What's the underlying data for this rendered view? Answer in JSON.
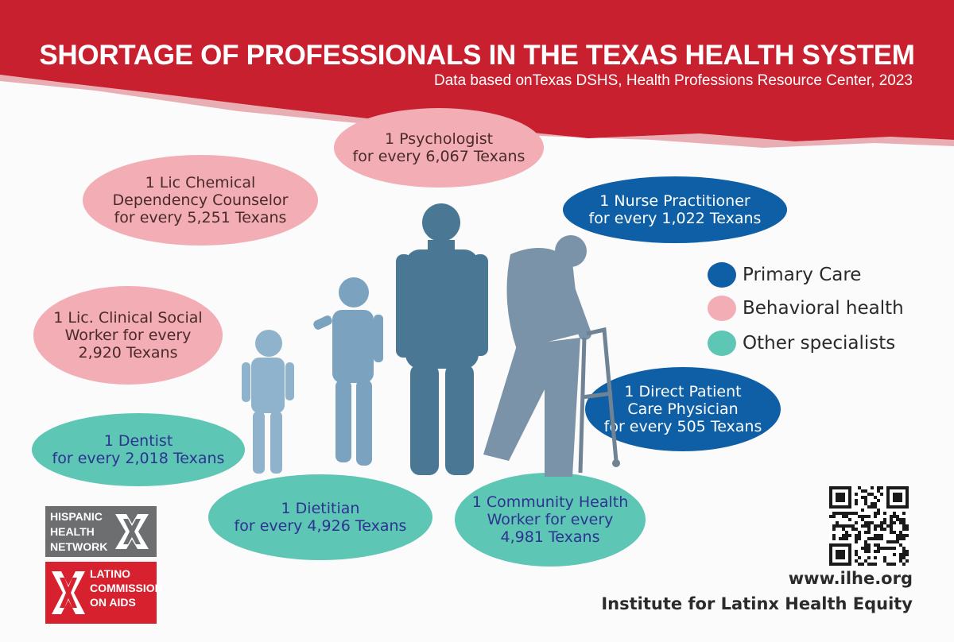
{
  "header": {
    "title": "SHORTAGE OF PROFESSIONALS IN THE TEXAS HEALTH SYSTEM",
    "subtitle": "Data based onTexas DSHS, Health Professions Resource Center, 2023"
  },
  "colors": {
    "banner": "#c8202f",
    "primary_care": "#0f5fa6",
    "behavioral_health": "#f2adb5",
    "other_specialists": "#5dc6b4"
  },
  "bubbles": {
    "psychologist": "1 Psychologist\nfor every 6,067 Texans",
    "chemical_dependency": "1 Lic Chemical\nDependency Counselor\nfor every 5,251 Texans",
    "nurse_practitioner": "1 Nurse Practitioner\nfor every 1,022 Texans",
    "social_worker": "1 Lic. Clinical Social\nWorker for every\n2,920 Texans",
    "physician": "1 Direct Patient\nCare Physician\nfor every 505 Texans",
    "dentist": "1 Dentist\nfor every 2,018 Texans",
    "dietitian": "1 Dietitian\nfor every 4,926 Texans",
    "community_health_worker": "1 Community Health\nWorker for every\n4,981 Texans"
  },
  "legend": {
    "primary_care": "Primary Care",
    "behavioral_health": "Behavioral health",
    "other_specialists": "Other specialists"
  },
  "logos": {
    "hhn": "HISPANIC\nHEALTH\nNETWORK",
    "lca": "LATINO\nCOMMISSION\nON AIDS"
  },
  "footer": {
    "url": "www.ilhe.org",
    "org": "Institute for Latinx Health Equity"
  }
}
